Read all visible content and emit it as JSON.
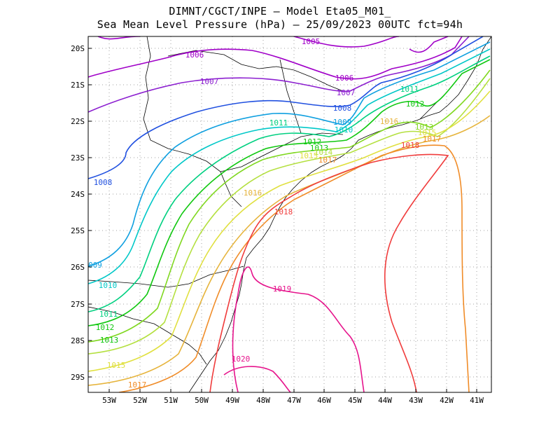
{
  "header": {
    "line1": "DIMNT/CGCT/INPE –  Model Eta05_M01_",
    "line2": "Sea Mean Level Pressure (hPa) – 25/09/2023 00UTC fct=94h"
  },
  "axes": {
    "lat_ticks": [
      "20S",
      "21S",
      "22S",
      "23S",
      "24S",
      "25S",
      "26S",
      "27S",
      "28S",
      "29S"
    ],
    "lon_ticks": [
      "53W",
      "52W",
      "51W",
      "50W",
      "49W",
      "48W",
      "47W",
      "46W",
      "45W",
      "44W",
      "43W",
      "42W",
      "41W"
    ]
  },
  "isobars": [
    {
      "value": "1005",
      "color": "#a000c8"
    },
    {
      "value": "1006",
      "color": "#a000c8"
    },
    {
      "value": "1007",
      "color": "#8c1fd0"
    },
    {
      "value": "1008",
      "color": "#2050e0"
    },
    {
      "value": "1009",
      "color": "#10a0e0"
    },
    {
      "value": "1010",
      "color": "#00c8c8"
    },
    {
      "value": "1011",
      "color": "#00d080"
    },
    {
      "value": "1012",
      "color": "#10c810"
    },
    {
      "value": "1013",
      "color": "#80d820"
    },
    {
      "value": "1014",
      "color": "#b4e040"
    },
    {
      "value": "1015",
      "color": "#e0e040"
    },
    {
      "value": "1016",
      "color": "#e6b43c"
    },
    {
      "value": "1017",
      "color": "#f08c28"
    },
    {
      "value": "1018",
      "color": "#f03c3c"
    },
    {
      "value": "1019",
      "color": "#e6148c"
    },
    {
      "value": "1020",
      "color": "#e6148c"
    }
  ],
  "contour_labels": [
    {
      "text": "1005",
      "color": "#a000c8"
    },
    {
      "text": "1006",
      "color": "#a000c8"
    },
    {
      "text": "1006",
      "color": "#a000c8"
    },
    {
      "text": "1007",
      "color": "#8c1fd0"
    },
    {
      "text": "1007",
      "color": "#8c1fd0"
    },
    {
      "text": "1008",
      "color": "#2050e0"
    },
    {
      "text": "1008",
      "color": "#2050e0"
    },
    {
      "text": "1009",
      "color": "#10a0e0"
    },
    {
      "text": "009",
      "color": "#10a0e0"
    },
    {
      "text": "1010",
      "color": "#00c8c8"
    },
    {
      "text": "1010",
      "color": "#00c8c8"
    },
    {
      "text": "1011",
      "color": "#00d080"
    },
    {
      "text": "1011",
      "color": "#00d080"
    },
    {
      "text": "1011",
      "color": "#00d080"
    },
    {
      "text": "1012",
      "color": "#10c810"
    },
    {
      "text": "1012",
      "color": "#10c810"
    },
    {
      "text": "1012",
      "color": "#10c810"
    },
    {
      "text": "1013",
      "color": "#10c810"
    },
    {
      "text": "1013",
      "color": "#80d820"
    },
    {
      "text": "1013",
      "color": "#80d820"
    },
    {
      "text": "1014",
      "color": "#b4e040"
    },
    {
      "text": "1015",
      "color": "#e0e040"
    },
    {
      "text": "1015",
      "color": "#e0e040"
    },
    {
      "text": "1015",
      "color": "#e0e040"
    },
    {
      "text": "1016",
      "color": "#e6b43c"
    },
    {
      "text": "1016",
      "color": "#e6b43c"
    },
    {
      "text": "1017",
      "color": "#f08c28"
    },
    {
      "text": "1017",
      "color": "#f08c28"
    },
    {
      "text": "1017",
      "color": "#f08c28"
    },
    {
      "text": "1018",
      "color": "#f03c3c"
    },
    {
      "text": "1018",
      "color": "#f03c3c"
    },
    {
      "text": "1019",
      "color": "#e6148c"
    },
    {
      "text": "1020",
      "color": "#e6148c"
    }
  ]
}
